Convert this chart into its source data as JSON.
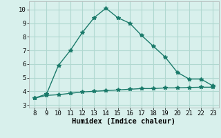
{
  "x": [
    8,
    9,
    10,
    11,
    12,
    13,
    14,
    15,
    16,
    17,
    18,
    19,
    20,
    21,
    22,
    23
  ],
  "y_upper": [
    3.5,
    3.8,
    5.9,
    7.0,
    8.3,
    9.4,
    10.1,
    9.4,
    9.0,
    8.1,
    7.3,
    6.5,
    5.4,
    4.9,
    4.9,
    4.4
  ],
  "y_lower": [
    3.5,
    3.7,
    3.75,
    3.85,
    3.95,
    4.0,
    4.05,
    4.1,
    4.15,
    4.2,
    4.2,
    4.25,
    4.25,
    4.28,
    4.3,
    4.3
  ],
  "line_color": "#1a7a6a",
  "bg_color": "#d8f0ec",
  "grid_color": "#b0d8d0",
  "xlabel": "Humidex (Indice chaleur)",
  "xlim": [
    7.5,
    23.5
  ],
  "ylim": [
    2.8,
    10.6
  ],
  "xticks": [
    8,
    9,
    10,
    11,
    12,
    13,
    14,
    15,
    16,
    17,
    18,
    19,
    20,
    21,
    22,
    23
  ],
  "yticks": [
    3,
    4,
    5,
    6,
    7,
    8,
    9,
    10
  ],
  "marker_size": 4,
  "line_width": 1.0,
  "font_size": 6.5,
  "xlabel_fontsize": 7.5
}
